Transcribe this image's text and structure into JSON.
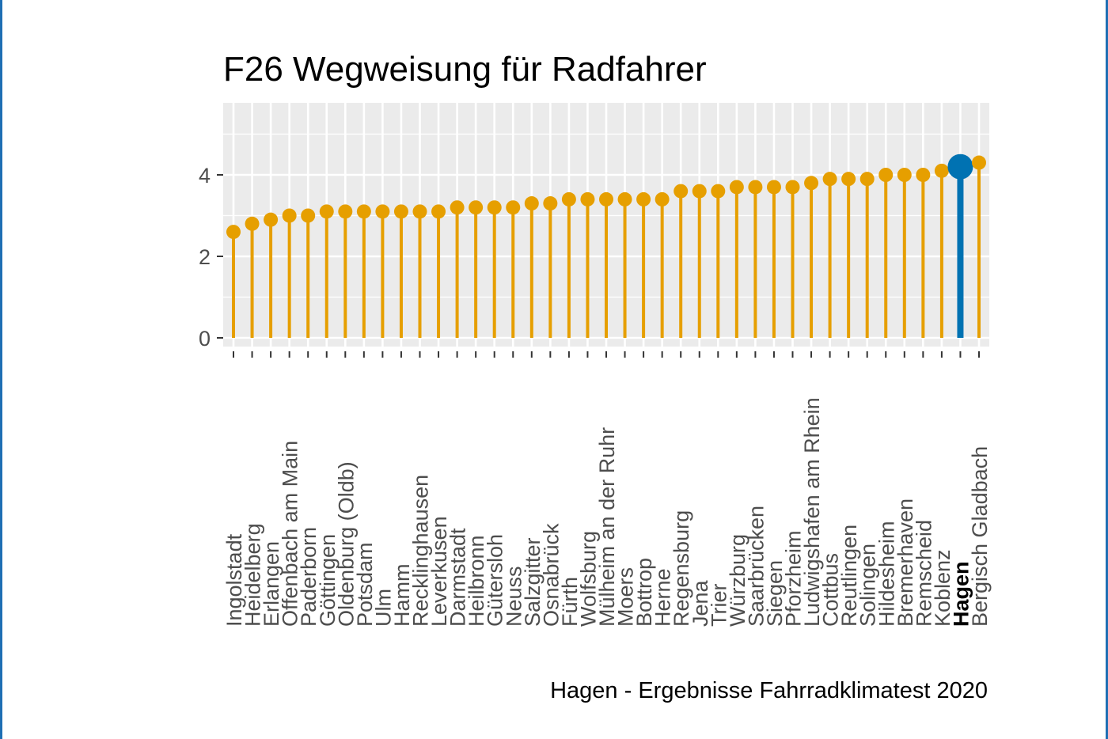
{
  "chart_data": {
    "type": "lollipop",
    "title": "F26 Wegweisung für Radfahrer",
    "caption": "Hagen - Ergebnisse Fahrradklimatest 2020",
    "xlabel": "",
    "ylabel": "",
    "ylim": [
      -0.25,
      5.7
    ],
    "yticks": [
      0,
      2,
      4
    ],
    "grid": true,
    "highlight": "Hagen",
    "colors": {
      "default": "#E69F00",
      "highlight": "#0072B2",
      "panel": "#EBEBEB",
      "grid": "#FFFFFF"
    },
    "categories": [
      "Ingolstadt",
      "Heidelberg",
      "Erlangen",
      "Offenbach am Main",
      "Paderborn",
      "Göttingen",
      "Oldenburg  (Oldb)",
      "Potsdam",
      "Ulm",
      "Hamm",
      "Recklinghausen",
      "Leverkusen",
      "Darmstadt",
      "Heilbronn",
      "Gütersloh",
      "Neuss",
      "Salzgitter",
      "Osnabrück",
      "Fürth",
      "Wolfsburg",
      "Mülheim an der Ruhr",
      "Moers",
      "Bottrop",
      "Herne",
      "Regensburg",
      "Jena",
      "Trier",
      "Würzburg",
      "Saarbrücken",
      "Siegen",
      "Pforzheim",
      "Ludwigshafen am Rhein",
      "Cottbus",
      "Reutlingen",
      "Solingen",
      "Hildesheim",
      "Bremerhaven",
      "Remscheid",
      "Koblenz",
      "Hagen",
      "Bergisch Gladbach"
    ],
    "values": [
      2.6,
      2.8,
      2.9,
      3.0,
      3.0,
      3.1,
      3.1,
      3.1,
      3.1,
      3.1,
      3.1,
      3.1,
      3.2,
      3.2,
      3.2,
      3.2,
      3.3,
      3.3,
      3.4,
      3.4,
      3.4,
      3.4,
      3.4,
      3.4,
      3.6,
      3.6,
      3.6,
      3.7,
      3.7,
      3.7,
      3.7,
      3.8,
      3.9,
      3.9,
      3.9,
      4.0,
      4.0,
      4.0,
      4.1,
      4.2,
      4.3
    ]
  }
}
